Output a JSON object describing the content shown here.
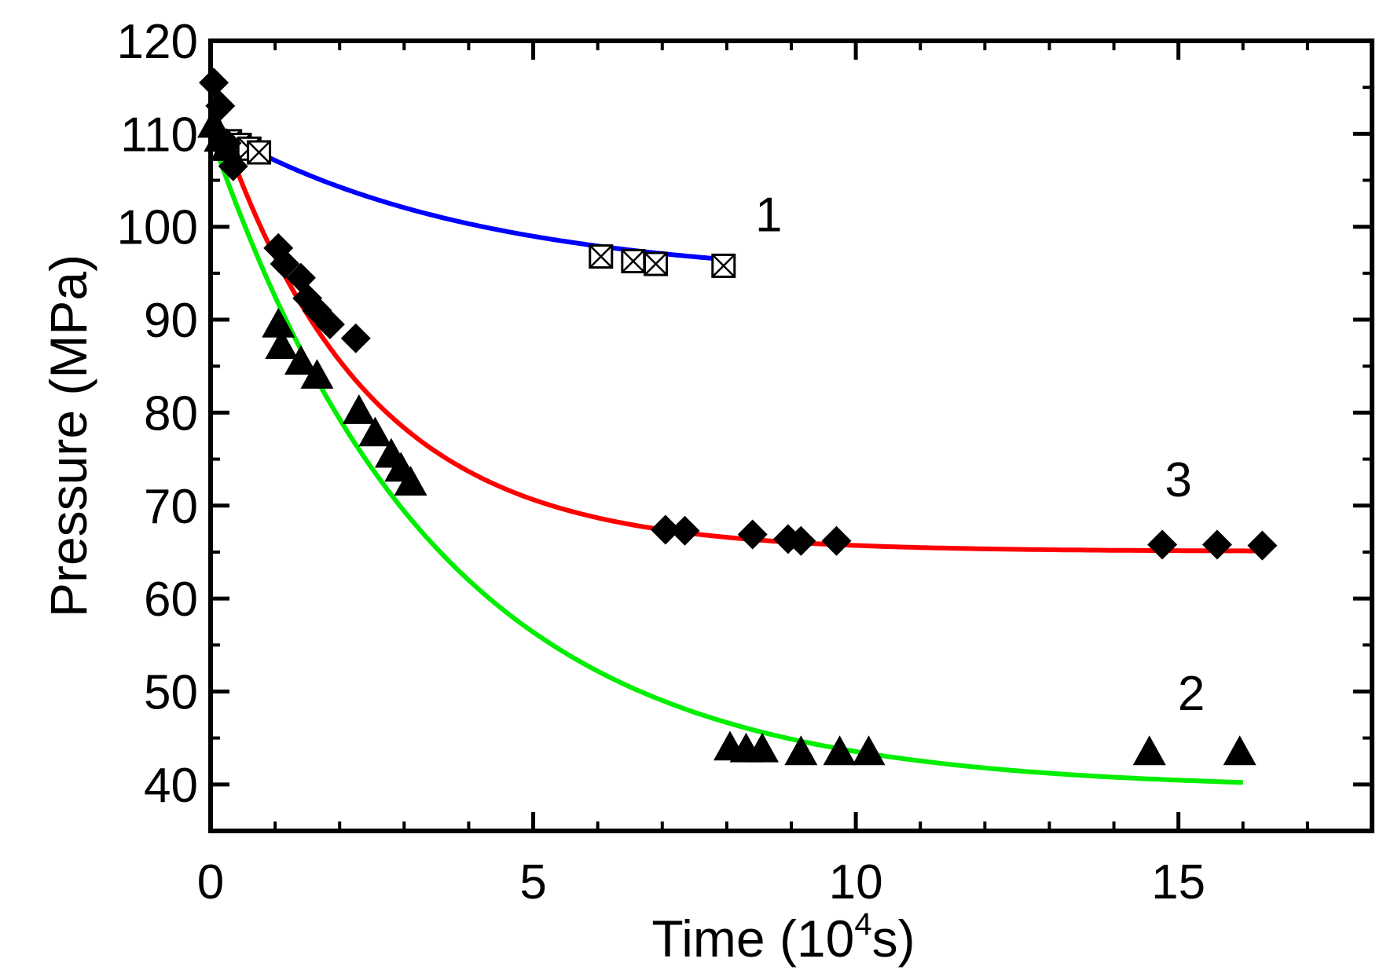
{
  "chart_data": {
    "type": "scatter",
    "title": "",
    "xlabel": "Time (10",
    "xlabel_sup": "4",
    "xlabel_tail": "s)",
    "ylabel": "Pressure (MPa)",
    "xlim": [
      0,
      18
    ],
    "ylim": [
      35,
      120
    ],
    "x_ticks": [
      0,
      5,
      10,
      15
    ],
    "x_tick_labels": [
      "0",
      "5",
      "10",
      "15"
    ],
    "y_ticks": [
      40,
      50,
      60,
      70,
      80,
      90,
      100,
      110,
      120
    ],
    "y_tick_labels": [
      "40",
      "50",
      "60",
      "70",
      "80",
      "90",
      "100",
      "110",
      "120"
    ],
    "grid": false,
    "series": [
      {
        "name": "1",
        "label": "1",
        "marker": "boxed-x",
        "x": [
          0.3,
          0.45,
          0.6,
          0.75,
          6.05,
          6.55,
          6.9,
          7.95
        ],
        "y": [
          109.2,
          108.8,
          108.4,
          108.0,
          96.8,
          96.3,
          96.0,
          95.8
        ],
        "fit_color": "#0000ff",
        "fit": {
          "type": "exp",
          "a": 94.23,
          "b": 16.57,
          "tau": 4.0,
          "x_from": 0.0,
          "x_to": 8.0
        },
        "label_at": [
          8.65,
          99.5
        ]
      },
      {
        "name": "2",
        "label": "2",
        "marker": "triangle",
        "x": [
          0.05,
          0.15,
          0.25,
          1.05,
          1.1,
          1.4,
          1.65,
          2.3,
          2.55,
          2.8,
          2.95,
          3.1,
          8.05,
          8.3,
          8.55,
          9.15,
          9.75,
          10.2,
          14.55,
          15.95
        ],
        "y": [
          111.0,
          109.5,
          108.5,
          89.5,
          87.2,
          85.5,
          84.0,
          80.2,
          77.8,
          75.5,
          74.0,
          72.5,
          44.0,
          43.8,
          43.8,
          43.5,
          43.5,
          43.5,
          43.5,
          43.5
        ],
        "fit_color": "#00ee00",
        "fit": {
          "type": "exp",
          "a": 39.49,
          "b": 70.51,
          "tau": 3.5,
          "x_from": 0.0,
          "x_to": 16.0
        },
        "label_at": [
          15.2,
          48.0
        ]
      },
      {
        "name": "3",
        "label": "3",
        "marker": "diamond",
        "x": [
          0.05,
          0.15,
          0.25,
          0.35,
          1.05,
          1.15,
          1.4,
          1.5,
          1.65,
          1.85,
          2.25,
          7.05,
          7.35,
          8.4,
          8.95,
          9.15,
          9.7,
          14.75,
          15.6,
          16.3
        ],
        "y": [
          115.5,
          113.0,
          109.0,
          106.5,
          97.7,
          96.0,
          94.5,
          92.3,
          91.0,
          89.5,
          88.0,
          67.4,
          67.3,
          66.9,
          66.4,
          66.2,
          66.2,
          65.8,
          65.8,
          65.7
        ],
        "fit_color": "#ff0000",
        "fit": {
          "type": "exp",
          "a": 65.08,
          "b": 48.92,
          "tau": 2.3,
          "x_from": 0.0,
          "x_to": 16.3
        },
        "label_at": [
          15.0,
          71.0
        ]
      }
    ]
  }
}
